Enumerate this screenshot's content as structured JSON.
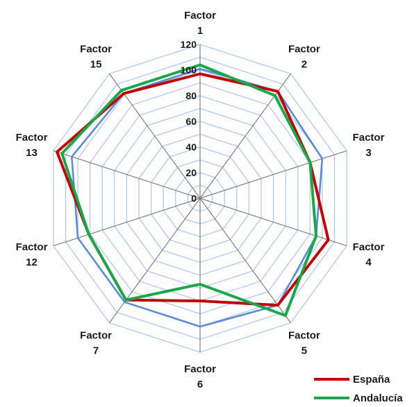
{
  "chart_data": {
    "type": "radar",
    "categories": [
      [
        "Factor",
        "1"
      ],
      [
        "Factor",
        "2"
      ],
      [
        "Factor",
        "3"
      ],
      [
        "Factor",
        "4"
      ],
      [
        "Factor",
        "5"
      ],
      [
        "Factor",
        "6"
      ],
      [
        "Factor",
        "7"
      ],
      [
        "Factor",
        "12"
      ],
      [
        "Factor",
        "13"
      ],
      [
        "Factor",
        "15"
      ]
    ],
    "rlim": [
      0,
      120
    ],
    "ticks": [
      "0",
      "20",
      "40",
      "60",
      "80",
      "100",
      "120"
    ],
    "tick_values": [
      0,
      20,
      40,
      60,
      80,
      100,
      120
    ],
    "grid": true,
    "legend_position": "bottom-right",
    "series": [
      {
        "name": "España",
        "color": "#c00000",
        "values": [
          97,
          103,
          90,
          105,
          103,
          80,
          98,
          91,
          117,
          101
        ]
      },
      {
        "name": "Andalucía",
        "color": "#1aa64a",
        "values": [
          104,
          99,
          90,
          95,
          113,
          67,
          98,
          91,
          113,
          104
        ]
      },
      {
        "name": "",
        "color": "#5b8bd6",
        "values": [
          101,
          103,
          100,
          95,
          103,
          100,
          100,
          100,
          105,
          101
        ]
      }
    ]
  },
  "colors": {
    "grid": "#b4c7e7",
    "spoke": "#7f7f7f"
  }
}
